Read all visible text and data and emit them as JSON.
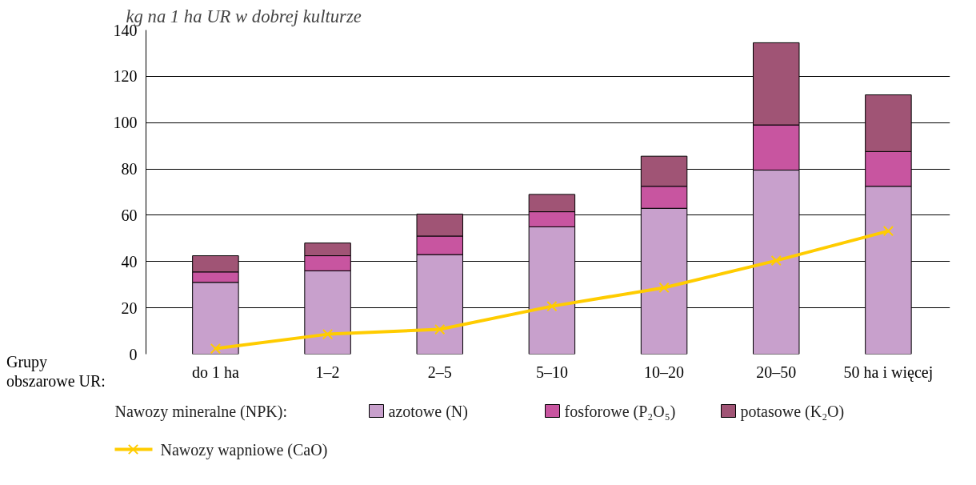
{
  "chart_data": {
    "type": "bar",
    "stacked": true,
    "ylabel": "kg na 1 ha UR w dobrej kulturze",
    "legend_title": "Nawozy mineralne (NPK):",
    "annotations": [
      "Grupy\nobszarowe UR:"
    ],
    "categories": [
      "do 1 ha",
      "1–2",
      "2–5",
      "5–10",
      "10–20",
      "20–50",
      "50 ha i więcej"
    ],
    "series": [
      {
        "name": "azotowe (N)",
        "color": "#c8a0cc",
        "values": [
          31,
          36,
          43,
          55,
          63,
          79.5,
          72.5
        ]
      },
      {
        "name": "fosforowe (P₂O₅)",
        "color": "#c855a0",
        "values": [
          4.5,
          6.5,
          8,
          6.5,
          9.5,
          19.5,
          15
        ]
      },
      {
        "name": "potasowe (K₂O)",
        "color": "#a05475",
        "values": [
          7,
          5.5,
          9.5,
          7.5,
          13,
          35.5,
          24.5
        ]
      },
      {
        "name": "Nawozy wapniowe (CaO)",
        "type": "line",
        "marker": "cross",
        "color": "#ffcc00",
        "values": [
          2.4,
          8.6,
          10.7,
          20.7,
          28.7,
          40.4,
          53.2
        ]
      }
    ],
    "ylim": [
      0,
      140
    ],
    "yticks": [
      0,
      20,
      40,
      60,
      80,
      100,
      120,
      140
    ],
    "grid": "y",
    "legend": "bottom"
  }
}
